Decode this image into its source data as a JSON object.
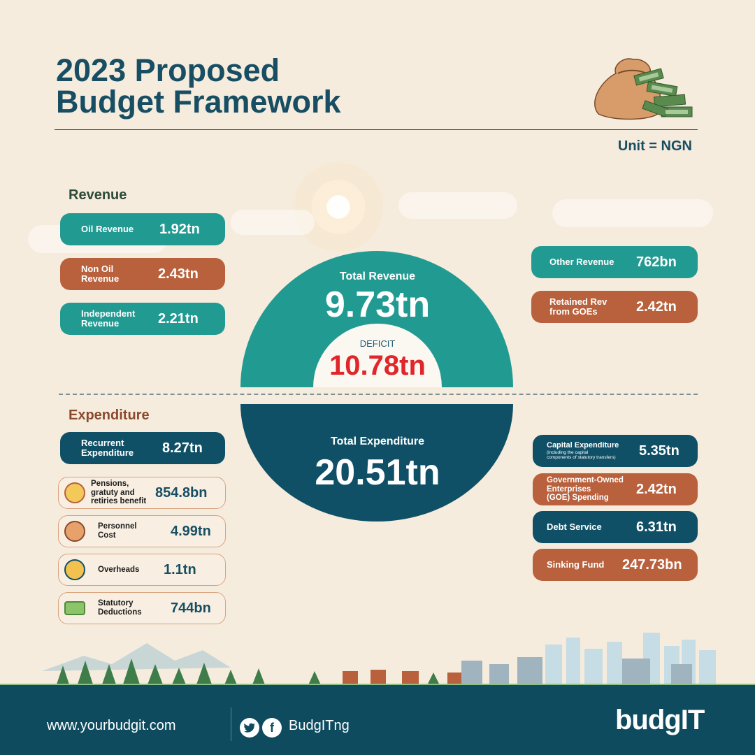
{
  "header": {
    "title_line1": "2023 Proposed",
    "title_line2": "Budget Framework",
    "unit": "Unit = NGN"
  },
  "revenue": {
    "heading": "Revenue",
    "oil": {
      "label": "Oil Revenue",
      "value": "1.92tn"
    },
    "non_oil": {
      "label1": "Non Oil",
      "label2": "Revenue",
      "value": "2.43tn"
    },
    "independent": {
      "label1": "Independent",
      "label2": "Revenue",
      "value": "2.21tn"
    },
    "other": {
      "label": "Other Revenue",
      "value": "762bn"
    },
    "retained": {
      "label1": "Retained Rev",
      "label2": "from GOEs",
      "value": "2.42tn"
    },
    "total_label": "Total Revenue",
    "total_value": "9.73tn"
  },
  "deficit": {
    "label": "DEFICIT",
    "value": "10.78tn"
  },
  "expenditure": {
    "heading": "Expenditure",
    "total_label": "Total Expenditure",
    "total_value": "20.51tn",
    "recurrent": {
      "label1": "Recurrent",
      "label2": "Expenditure",
      "value": "8.27tn"
    },
    "pensions": {
      "label1": "Pensions,",
      "label2": "gratuty and",
      "label3": "retiries benefit",
      "value": "854.8bn",
      "icon": "pension-icon"
    },
    "personnel": {
      "label1": "Personnel",
      "label2": "Cost",
      "value": "4.99tn",
      "icon": "people-icon"
    },
    "overheads": {
      "label": "Overheads",
      "value": "1.1tn",
      "icon": "overheads-icon"
    },
    "statutory": {
      "label1": "Statutory",
      "label2": "Deductions",
      "value": "744bn",
      "icon": "cash-icon"
    },
    "capital": {
      "label": "Capital Expenditure",
      "sub1": "(including the capital",
      "sub2": "components of statutory transfers)",
      "value": "5.35tn"
    },
    "goe": {
      "label1": "Government-Owned",
      "label2": "Enterprises",
      "label3": "(GOE) Spending",
      "value": "2.42tn"
    },
    "debt": {
      "label": "Debt Service",
      "value": "6.31tn"
    },
    "sinking": {
      "label": "Sinking Fund",
      "value": "247.73bn"
    }
  },
  "footer": {
    "website": "www.yourbudgit.com",
    "handle": "BudgITng",
    "brand": "budgIT"
  },
  "colors": {
    "background": "#f6ecdd",
    "navy": "#0f5066",
    "teal": "#219a92",
    "rust": "#b9613d",
    "deficit_red": "#e0252b"
  }
}
